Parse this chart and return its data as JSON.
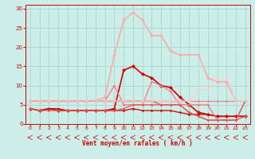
{
  "xlabel": "Vent moyen/en rafales ( km/h )",
  "bg_color": "#cceee8",
  "grid_color": "#aad4ce",
  "x_ticks": [
    0,
    1,
    2,
    3,
    4,
    5,
    6,
    7,
    8,
    9,
    10,
    11,
    12,
    13,
    14,
    15,
    16,
    17,
    18,
    19,
    20,
    21,
    22,
    23
  ],
  "ylim": [
    0,
    31
  ],
  "yticks": [
    0,
    5,
    10,
    15,
    20,
    25,
    30
  ],
  "lines": [
    {
      "x": [
        0,
        1,
        2,
        3,
        4,
        5,
        6,
        7,
        8,
        9,
        10,
        11,
        12,
        13,
        14,
        15,
        16,
        17,
        18,
        19,
        20,
        21,
        22,
        23
      ],
      "y": [
        4,
        3.5,
        4,
        4,
        3.5,
        3.5,
        3.5,
        3.5,
        3.5,
        3.5,
        3.5,
        4,
        3.5,
        3.5,
        3.5,
        3.5,
        3,
        2.5,
        2.5,
        2.5,
        2,
        2,
        2,
        2
      ],
      "color": "#bb0000",
      "lw": 0.9,
      "marker": "D",
      "ms": 1.8
    },
    {
      "x": [
        0,
        1,
        2,
        3,
        4,
        5,
        6,
        7,
        8,
        9,
        10,
        11,
        12,
        13,
        14,
        15,
        16,
        17,
        18,
        19,
        20,
        21,
        22,
        23
      ],
      "y": [
        4,
        3.5,
        4,
        3.5,
        3.5,
        3.5,
        3.5,
        3.5,
        3.5,
        4,
        14,
        15,
        13,
        12,
        10,
        9.5,
        7,
        5,
        3,
        2.5,
        2,
        2,
        2,
        2
      ],
      "color": "#cc0000",
      "lw": 1.2,
      "marker": "D",
      "ms": 2.5
    },
    {
      "x": [
        0,
        1,
        2,
        3,
        4,
        5,
        6,
        7,
        8,
        9,
        10,
        11,
        12,
        13,
        14,
        15,
        16,
        17,
        18,
        19,
        20,
        21,
        22,
        23
      ],
      "y": [
        6,
        6,
        6,
        6,
        6,
        6,
        6,
        6,
        6,
        6,
        6,
        6,
        6,
        6,
        6,
        6,
        6,
        6,
        6,
        6,
        6,
        6,
        6,
        6
      ],
      "color": "#ee8888",
      "lw": 0.9,
      "marker": "D",
      "ms": 1.8
    },
    {
      "x": [
        0,
        1,
        2,
        3,
        4,
        5,
        6,
        7,
        8,
        9,
        10,
        11,
        12,
        13,
        14,
        15,
        16,
        17,
        18,
        19,
        20,
        21,
        22,
        23
      ],
      "y": [
        6,
        6,
        6,
        6,
        6,
        6,
        6,
        6,
        7,
        18,
        27,
        29,
        27,
        23,
        23,
        19,
        18,
        18,
        18,
        12,
        11,
        11,
        6,
        6
      ],
      "color": "#ffaaaa",
      "lw": 1.2,
      "marker": "D",
      "ms": 2.2
    },
    {
      "x": [
        0,
        1,
        2,
        3,
        4,
        5,
        6,
        7,
        8,
        9,
        10,
        11,
        12,
        13,
        14,
        15,
        16,
        17,
        18,
        19,
        20,
        21,
        22,
        23
      ],
      "y": [
        6,
        6,
        6,
        6,
        6,
        6,
        6,
        6,
        6,
        10,
        5,
        5,
        5,
        11,
        10,
        8.5,
        5,
        5,
        5,
        5,
        1,
        1,
        1,
        6
      ],
      "color": "#ff7777",
      "lw": 0.9,
      "marker": "D",
      "ms": 1.8
    },
    {
      "x": [
        0,
        1,
        2,
        3,
        4,
        5,
        6,
        7,
        8,
        9,
        10,
        11,
        12,
        13,
        14,
        15,
        16,
        17,
        18,
        19,
        20,
        21,
        22,
        23
      ],
      "y": [
        6,
        6,
        6,
        6,
        6,
        6,
        6,
        6,
        6,
        6,
        6,
        6,
        6,
        6,
        5,
        5,
        5,
        3,
        2,
        1,
        1,
        1,
        1,
        6
      ],
      "color": "#dd5555",
      "lw": 0.9,
      "marker": "D",
      "ms": 1.8
    },
    {
      "x": [
        0,
        1,
        2,
        3,
        4,
        5,
        6,
        7,
        8,
        9,
        10,
        11,
        12,
        13,
        14,
        15,
        16,
        17,
        18,
        19,
        20,
        21,
        22,
        23
      ],
      "y": [
        4,
        3.5,
        3.5,
        3.5,
        3.5,
        3.5,
        3.5,
        3.5,
        3.5,
        3.5,
        4,
        5,
        5,
        5,
        5,
        5,
        5,
        3,
        2,
        1,
        1,
        1,
        1,
        2
      ],
      "color": "#ee5555",
      "lw": 0.9,
      "marker": "D",
      "ms": 1.8
    },
    {
      "x": [
        0,
        1,
        2,
        3,
        4,
        5,
        6,
        7,
        8,
        9,
        10,
        11,
        12,
        13,
        14,
        15,
        16,
        17,
        18,
        19,
        20,
        21,
        22,
        23
      ],
      "y": [
        6,
        6,
        6,
        6,
        6,
        6,
        6,
        6,
        6,
        6,
        6,
        6,
        6,
        6,
        6,
        6,
        6,
        6,
        9,
        9,
        12,
        12,
        6,
        6
      ],
      "color": "#ffcccc",
      "lw": 0.9,
      "marker": "D",
      "ms": 1.8
    }
  ]
}
